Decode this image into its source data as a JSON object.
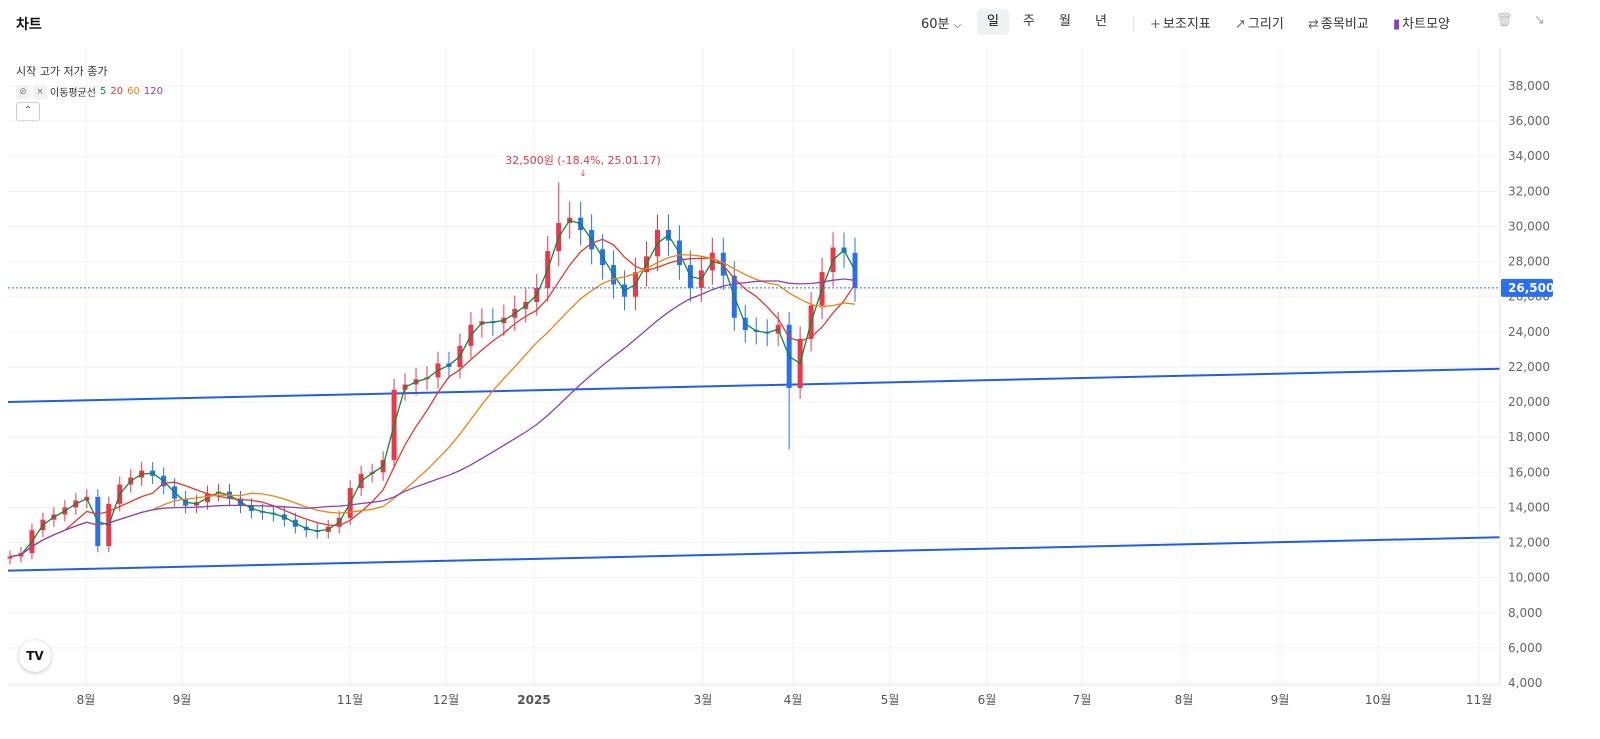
{
  "header": {
    "title": "차트",
    "interval": "60분",
    "periods": [
      "일",
      "주",
      "월",
      "년"
    ],
    "active_period": "일",
    "tools": [
      {
        "icon": "plus-icon",
        "label": "보조지표"
      },
      {
        "icon": "pencil-icon",
        "label": "그리기"
      },
      {
        "icon": "compare-icon",
        "label": "종목비교"
      },
      {
        "icon": "candles-icon",
        "label": "차트모양"
      }
    ]
  },
  "legend": {
    "ohlc_label": "시작 고가 저가 종가",
    "ma_label": "이동평균선",
    "ma_periods": [
      "5",
      "20",
      "60",
      "120"
    ],
    "ma_colors": [
      "#0a8a3a",
      "#e5392d",
      "#f2830c",
      "#8e3fb5"
    ]
  },
  "colors": {
    "up": "#e8384a",
    "down": "#2a6ff0",
    "trendline": "#1f5fe6",
    "current_price_bg": "#2a6ff0"
  },
  "annotation": {
    "text": "32,500원 (-18.4%, 25.01.17)"
  },
  "current_price": {
    "label": "26,500",
    "value": 26500
  },
  "logo_text": "TV",
  "chart_data": {
    "type": "candlestick",
    "ylim": [
      4000,
      39000
    ],
    "y_ticks": [
      "4,000",
      "6,000",
      "8,000",
      "10,000",
      "12,000",
      "14,000",
      "16,000",
      "18,000",
      "20,000",
      "22,000",
      "24,000",
      "26,000",
      "28,000",
      "30,000",
      "32,000",
      "34,000",
      "36,000",
      "38,000"
    ],
    "x_ticks": [
      "8월",
      "9월",
      "11월",
      "12월",
      "2025",
      "3월",
      "4월",
      "5월",
      "6월",
      "7월",
      "8월",
      "9월",
      "10월",
      "11월"
    ],
    "close_series": [
      11200,
      11400,
      12700,
      13300,
      13600,
      14000,
      14400,
      14600,
      11800,
      14200,
      15300,
      15700,
      16100,
      15800,
      15200,
      14500,
      14100,
      14300,
      14800,
      14900,
      14500,
      14100,
      13800,
      13700,
      13600,
      13300,
      12900,
      12700,
      12600,
      12900,
      13400,
      15100,
      15900,
      16000,
      16700,
      20700,
      21000,
      21300,
      21400,
      22200,
      22000,
      23200,
      24400,
      24600,
      24500,
      24800,
      25300,
      25700,
      26500,
      28600,
      30200,
      30500,
      29800,
      28700,
      27800,
      26700,
      26000,
      27400,
      28300,
      29800,
      29200,
      27800,
      26500,
      27500,
      28500,
      27200,
      24800,
      24100,
      24000,
      23900,
      24400,
      20800,
      23600,
      25500,
      27400,
      28800,
      28500,
      26500
    ],
    "trendlines": [
      {
        "from": [
          "2024-07",
          20000
        ],
        "to": [
          "2025-11",
          21900
        ]
      },
      {
        "from": [
          "2024-07",
          10400
        ],
        "to": [
          "2025-11",
          12300
        ]
      }
    ],
    "series": [
      {
        "name": "이동평균선 5"
      },
      {
        "name": "이동평균선 20"
      },
      {
        "name": "이동평균선 60"
      },
      {
        "name": "이동평균선 120"
      }
    ]
  }
}
